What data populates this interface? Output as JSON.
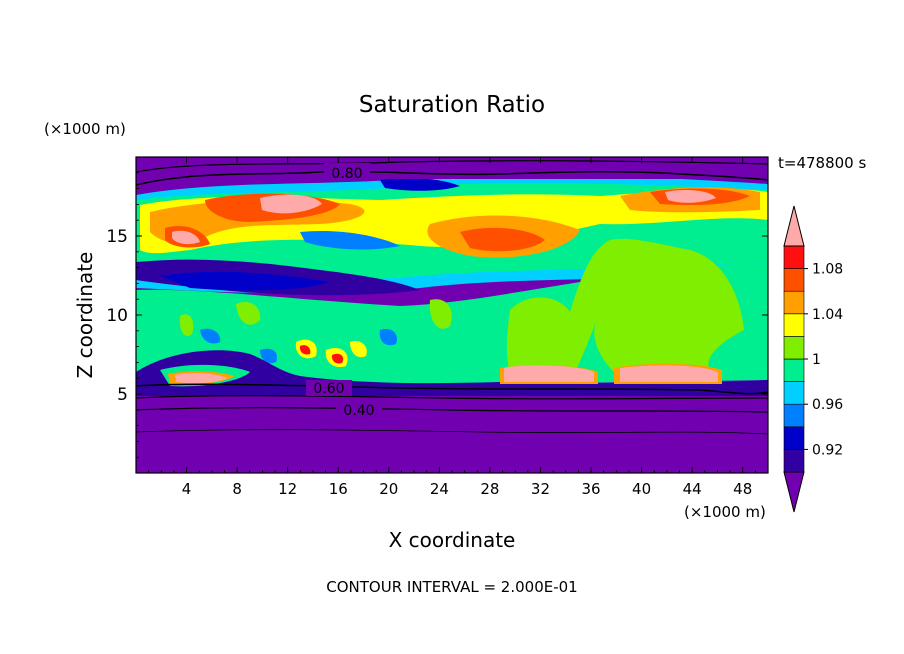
{
  "chart_data": {
    "type": "heatmap",
    "title": "Saturation Ratio",
    "xlabel": "X coordinate",
    "ylabel": "Z coordinate",
    "x_unit": "(×1000 m)",
    "y_unit": "(×1000 m)",
    "time_label": "t=478800 s",
    "footer": "CONTOUR INTERVAL = 2.000E-01",
    "xlim": [
      0,
      50
    ],
    "ylim": [
      0,
      20
    ],
    "x_ticks": [
      4,
      8,
      12,
      16,
      20,
      24,
      28,
      32,
      36,
      40,
      44,
      48
    ],
    "y_ticks": [
      5,
      10,
      15
    ],
    "contour_interval": 0.2,
    "contour_labels": [
      "0.80",
      "0.60",
      "0.40"
    ],
    "colorbar": {
      "tick_labels": [
        "1.08",
        "1.04",
        "1",
        "0.96",
        "0.92"
      ],
      "levels": [
        0.92,
        0.94,
        0.96,
        0.98,
        1.0,
        1.02,
        1.04,
        1.06,
        1.08,
        1.1
      ],
      "colors": [
        "#7000b0",
        "#3000a0",
        "#0000c8",
        "#0080ff",
        "#00d0ff",
        "#00ee90",
        "#80ee00",
        "#ffff00",
        "#ffa000",
        "#ff5000",
        "#ff1010",
        "#ffaaaa"
      ],
      "extend": "both"
    },
    "grid": false
  },
  "colors": {
    "dry": "#7000b0",
    "deep_blue": "#3000a0",
    "blue": "#0000c8",
    "light_blue": "#0080ff",
    "cyan": "#00d0ff",
    "sea_green": "#00ee90",
    "light_green": "#80ee00",
    "yellow": "#ffff00",
    "orange": "#ffa000",
    "orange_red": "#ff5000",
    "red": "#ff1010",
    "pink": "#ffaaaa"
  }
}
